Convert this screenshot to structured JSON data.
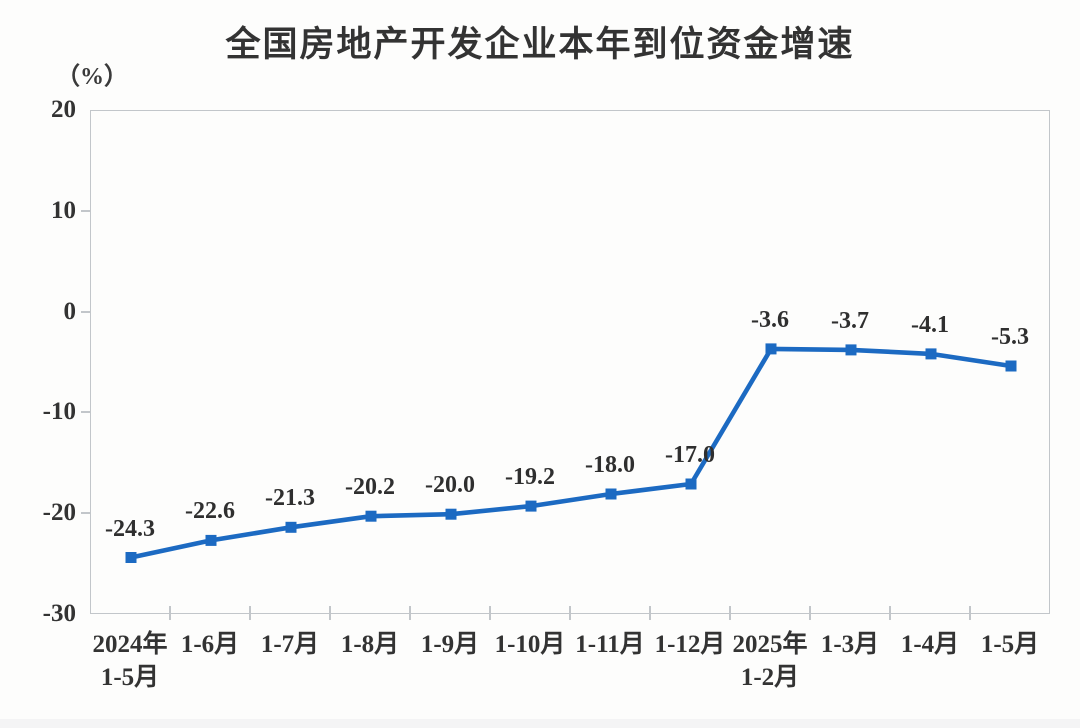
{
  "chart_data": {
    "type": "line",
    "title": "全国房地产开发企业本年到位资金增速",
    "unit_label": "（%）",
    "categories": [
      {
        "line1": "2024年",
        "line2": "1-5月"
      },
      {
        "line1": "1-6月"
      },
      {
        "line1": "1-7月"
      },
      {
        "line1": "1-8月"
      },
      {
        "line1": "1-9月"
      },
      {
        "line1": "1-10月"
      },
      {
        "line1": "1-11月"
      },
      {
        "line1": "1-12月"
      },
      {
        "line1": "2025年",
        "line2": "1-2月"
      },
      {
        "line1": "1-3月"
      },
      {
        "line1": "1-4月"
      },
      {
        "line1": "1-5月"
      }
    ],
    "series": [
      {
        "values": [
          -24.3,
          -22.6,
          -21.3,
          -20.2,
          -20.0,
          -19.2,
          -18.0,
          -17.0,
          -3.6,
          -3.7,
          -4.1,
          -5.3
        ],
        "labels": [
          "-24.3",
          "-22.6",
          "-21.3",
          "-20.2",
          "-20.0",
          "-19.2",
          "-18.0",
          "-17.0",
          "-3.6",
          "-3.7",
          "-4.1",
          "-5.3"
        ]
      }
    ],
    "ylim": [
      -30,
      20
    ],
    "yticks": [
      20,
      10,
      0,
      -10,
      -20,
      -30
    ],
    "grid": false,
    "legend_position": "none",
    "marker": "square",
    "line_color": "#1c6ac2",
    "text_color": "#333333",
    "axis_color": "#c2c6ca",
    "background_color": "#fdfdfc"
  }
}
